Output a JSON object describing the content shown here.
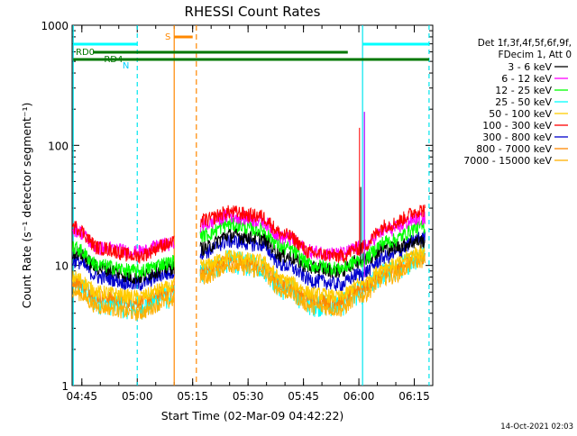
{
  "chart_data": {
    "type": "line",
    "title": "RHESSI Count Rates",
    "xlabel": "Start Time (02-Mar-09 04:42:22)",
    "ylabel": "Count Rate (s⁻¹ detector segment⁻¹)",
    "ylog": true,
    "ylim": [
      1,
      1000
    ],
    "xlim": [
      "04:42:22",
      "06:20:00"
    ],
    "x_ticks": [
      "04:45",
      "05:00",
      "05:15",
      "05:30",
      "05:45",
      "06:00",
      "06:15"
    ],
    "y_ticks": [
      "1",
      "10",
      "100",
      "1000"
    ],
    "legend_header": [
      "Det 1f,3f,4f,5f,6f,9f,",
      "FDecim 1, Att 0"
    ],
    "timestamp": "14-Oct-2021 02:03",
    "data_gap": [
      "05:10",
      "05:17"
    ],
    "series": [
      {
        "name": "3 - 6 keV",
        "color": "#000000",
        "x": [
          "04:43",
          "04:50",
          "05:00",
          "05:08",
          "05:18",
          "05:25",
          "05:33",
          "05:40",
          "05:48",
          "05:55",
          "06:00",
          "06:08",
          "06:17"
        ],
        "values": [
          13,
          9.5,
          8,
          9.5,
          14,
          18,
          17,
          12,
          9.5,
          9,
          11,
          14,
          16
        ]
      },
      {
        "name": "6 - 12 keV",
        "color": "#ff00ff",
        "x": [
          "04:43",
          "04:50",
          "05:00",
          "05:08",
          "05:18",
          "05:25",
          "05:33",
          "05:40",
          "05:48",
          "05:55",
          "06:00",
          "06:08",
          "06:17"
        ],
        "values": [
          20,
          14,
          13,
          15,
          22,
          26,
          24,
          17,
          13,
          12.5,
          14,
          20,
          25
        ]
      },
      {
        "name": "12 - 25 keV",
        "color": "#00ff00",
        "x": [
          "04:43",
          "04:50",
          "05:00",
          "05:08",
          "05:18",
          "05:25",
          "05:33",
          "05:40",
          "05:48",
          "05:55",
          "06:00",
          "06:08",
          "06:17"
        ],
        "values": [
          14,
          10,
          9,
          10.5,
          18,
          22,
          20,
          14,
          10,
          9.5,
          11,
          16,
          21
        ]
      },
      {
        "name": "25 - 50 keV",
        "color": "#00ffff",
        "x": [
          "04:43",
          "04:50",
          "05:00",
          "05:08",
          "05:18",
          "05:25",
          "05:33",
          "05:40",
          "05:48",
          "05:55",
          "06:00",
          "06:08",
          "06:17"
        ],
        "values": [
          7,
          5,
          4.5,
          5.5,
          9,
          11,
          10,
          6.5,
          4.8,
          4.8,
          6,
          9,
          12
        ]
      },
      {
        "name": "50 - 100 keV",
        "color": "#ffcc00",
        "x": [
          "04:43",
          "04:50",
          "05:00",
          "05:08",
          "05:18",
          "05:25",
          "05:33",
          "05:40",
          "05:48",
          "05:55",
          "06:00",
          "06:08",
          "06:17"
        ],
        "values": [
          8,
          6,
          5.5,
          6.5,
          10,
          12,
          11,
          7.5,
          5.8,
          5.5,
          7,
          10,
          13
        ]
      },
      {
        "name": "100 - 300 keV",
        "color": "#ff0000",
        "x": [
          "04:43",
          "04:50",
          "05:00",
          "05:08",
          "05:18",
          "05:25",
          "05:33",
          "05:40",
          "05:48",
          "05:55",
          "06:00",
          "06:08",
          "06:17"
        ],
        "values": [
          21,
          14,
          12,
          15,
          24,
          28,
          26,
          18,
          12.5,
          12,
          14,
          22,
          29
        ]
      },
      {
        "name": "300 - 800 keV",
        "color": "#0000cc",
        "x": [
          "04:43",
          "04:50",
          "05:00",
          "05:08",
          "05:18",
          "05:25",
          "05:33",
          "05:40",
          "05:48",
          "05:55",
          "06:00",
          "06:08",
          "06:17"
        ],
        "values": [
          11,
          8,
          7,
          8.5,
          13,
          16,
          15,
          10,
          7.5,
          7,
          8.5,
          12,
          17
        ]
      },
      {
        "name": "800 - 7000 keV",
        "color": "#ff8800",
        "x": [
          "04:43",
          "04:50",
          "05:00",
          "05:08",
          "05:18",
          "05:25",
          "05:33",
          "05:40",
          "05:48",
          "05:55",
          "06:00",
          "06:08",
          "06:17"
        ],
        "values": [
          7.5,
          5.5,
          5,
          6,
          9,
          11,
          10,
          7,
          5.2,
          5,
          6.5,
          9,
          12
        ]
      },
      {
        "name": "7000 - 15000 keV",
        "color": "#ffb000",
        "x": [
          "04:43",
          "04:50",
          "05:00",
          "05:08",
          "05:18",
          "05:25",
          "05:33",
          "05:40",
          "05:48",
          "05:55",
          "06:00",
          "06:08",
          "06:17"
        ],
        "values": [
          6,
          4.5,
          4,
          5,
          8,
          10,
          9,
          6,
          4.5,
          4.3,
          5.5,
          8,
          11
        ]
      }
    ],
    "annotations": {
      "N": "N",
      "S": "S",
      "RD0": "RD0",
      "RD4": "RD4"
    }
  }
}
